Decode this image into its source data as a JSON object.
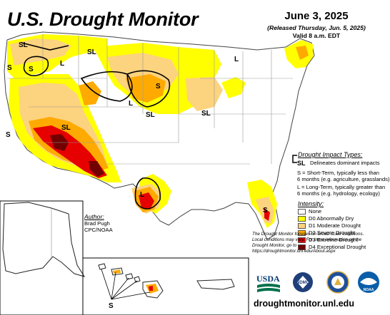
{
  "header": {
    "title": "U.S. Drought Monitor",
    "date": "June 3, 2025",
    "released": "(Released Thursday, Jun. 5, 2025)",
    "valid": "Valid 8 a.m. EDT"
  },
  "map_labels": [
    "SL",
    "S",
    "S",
    "SL",
    "L",
    "L",
    "SL",
    "SL",
    "S",
    "SL",
    "S",
    "L",
    "L",
    "S",
    "S"
  ],
  "impact_legend": {
    "title": "Drought Impact Types:",
    "delineate_symbol": "SL",
    "delineate_text": "Delineates dominant impacts",
    "short_term_line1": "S = Short-Term, typically less than",
    "short_term_line2": "6 months (e.g. agriculture, grasslands)",
    "long_term_line1": "L = Long-Term, typically greater than",
    "long_term_line2": "6 months (e.g. hydrology, ecology)"
  },
  "intensity_legend": {
    "title": "Intensity:",
    "items": [
      {
        "label": "None",
        "color": "#ffffff"
      },
      {
        "label": "D0 Abnormally Dry",
        "color": "#ffff00"
      },
      {
        "label": "D1 Moderate Drought",
        "color": "#fcd37f"
      },
      {
        "label": "D2 Severe Drought",
        "color": "#ffaa00"
      },
      {
        "label": "D3 Extreme Drought",
        "color": "#e60000"
      },
      {
        "label": "D4 Exceptional Drought",
        "color": "#730000"
      }
    ]
  },
  "author": {
    "heading": "Author:",
    "name": "Brad Pugh",
    "org": "CPC/NOAA"
  },
  "disclaimer": {
    "line1": "The Drought Monitor focuses on broad-scale conditions.",
    "line2": "Local conditions may vary. For more information on the",
    "line3": "Drought Monitor, go to https://droughtmonitor.unl.edu/About.aspx"
  },
  "logos": [
    {
      "text": "USDA",
      "icon": "usda-logo"
    },
    {
      "text": "NDMC",
      "icon": "ndmc-logo"
    },
    {
      "text": "",
      "icon": "doc-seal-logo"
    },
    {
      "text": "NOAA",
      "icon": "noaa-logo"
    }
  ],
  "url": "droughtmonitor.unl.edu"
}
